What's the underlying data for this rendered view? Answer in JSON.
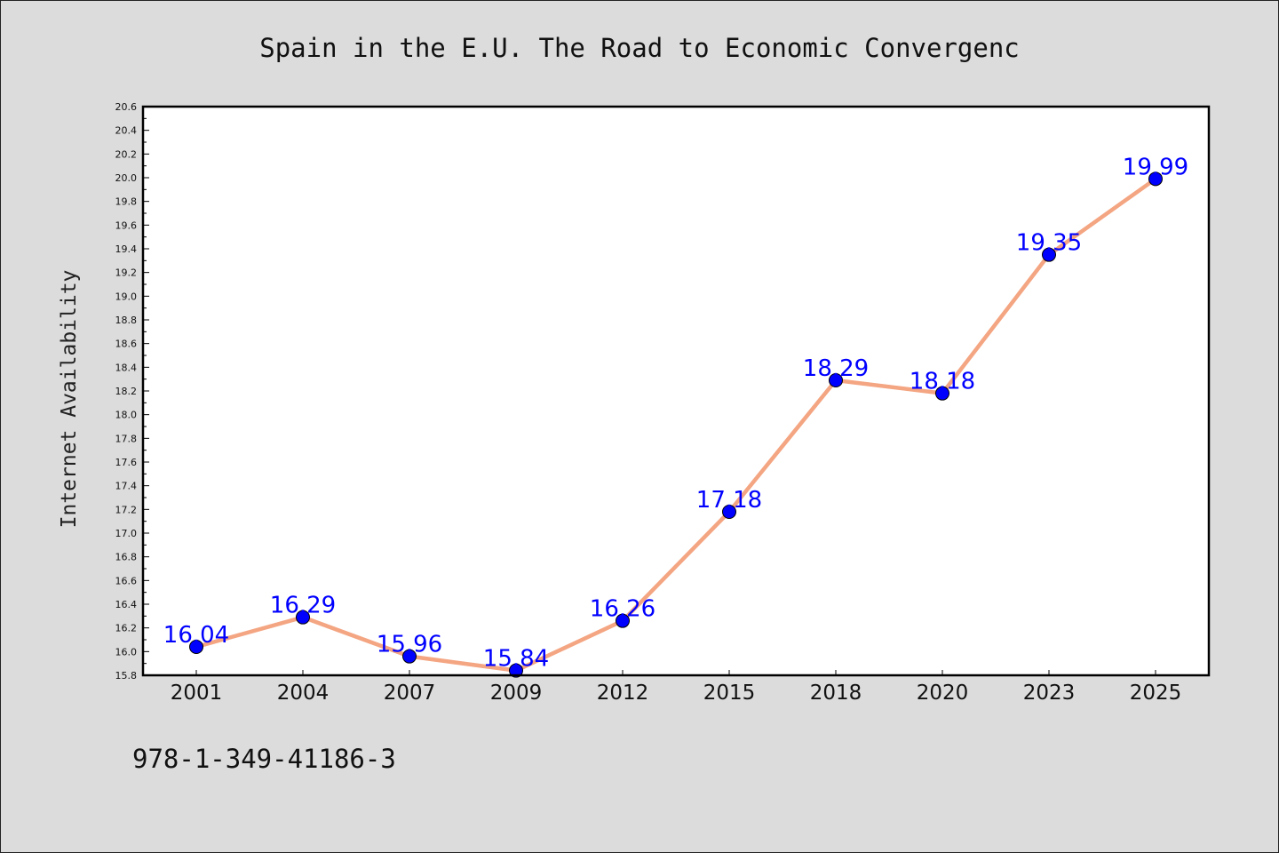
{
  "chart_data": {
    "type": "line",
    "title": "Spain in the E.U. The Road to Economic Convergenc",
    "xlabel": "",
    "ylabel": "Internet Availability",
    "categories": [
      "2001",
      "2004",
      "2007",
      "2009",
      "2012",
      "2015",
      "2018",
      "2020",
      "2023",
      "2025"
    ],
    "series": [
      {
        "values": [
          16.04,
          16.29,
          15.96,
          15.84,
          16.26,
          17.18,
          18.29,
          18.18,
          19.35,
          19.99
        ],
        "labels": [
          "16.04",
          "16.29",
          "15.96",
          "15.84",
          "16.26",
          "17.18",
          "18.29",
          "18.18",
          "19.35",
          "19.99"
        ]
      }
    ],
    "ylim": [
      15.8,
      20.6
    ],
    "yticks": [
      "15.8",
      "16.0",
      "16.2",
      "16.4",
      "16.6",
      "16.8",
      "17.0",
      "17.2",
      "17.4",
      "17.6",
      "17.8",
      "18.0",
      "18.2",
      "18.4",
      "18.6",
      "18.8",
      "19.0",
      "19.2",
      "19.4",
      "19.6",
      "19.8",
      "20.0",
      "20.2",
      "20.4",
      "20.6"
    ],
    "grid": false,
    "line_color": "#f4a582",
    "marker_color": "#0000ff",
    "label_color": "#0000ff",
    "plot_background": "#ffffff",
    "page_background": "#dcdcdc"
  },
  "footer_text": "978-1-349-41186-3"
}
